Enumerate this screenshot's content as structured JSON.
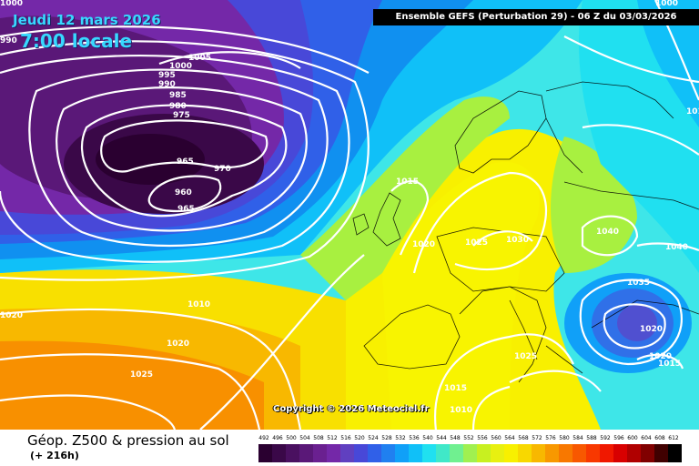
{
  "header": {
    "date_line": "Jeudi 12 mars 2026",
    "time_line": "7:00 locale",
    "model_banner": "Ensemble GEFS  (Perturbation 29)  -  06 Z du 03/03/2026"
  },
  "map": {
    "copyright": "Copyright © 2026 Meteociel.fr",
    "isobar_labels": {
      "l1": "990",
      "l2": "1005",
      "l3": "1000",
      "l4": "995",
      "l5": "990",
      "l6": "985",
      "l7": "980",
      "l8": "975",
      "l9": "965",
      "l10": "970",
      "l11": "960",
      "l12": "965",
      "l13": "1015",
      "l14": "1020",
      "l15": "1025",
      "l16": "1030",
      "l17": "1040",
      "l18": "1040",
      "l19": "1010",
      "l20": "1020",
      "l21": "1020",
      "l22": "1025",
      "l23": "1035",
      "l24": "1020",
      "l25": "1020",
      "l26": "1015",
      "l27": "1025",
      "l28": "1015",
      "l29": "1010",
      "l30": "1000",
      "l31": "1000",
      "l32": "101"
    }
  },
  "footer": {
    "title": "Géop. Z500 & pression au sol",
    "step": "(+ 216h)",
    "scale_labels": [
      "492",
      "496",
      "500",
      "504",
      "508",
      "512",
      "516",
      "520",
      "524",
      "528",
      "532",
      "536",
      "540",
      "544",
      "548",
      "552",
      "556",
      "560",
      "564",
      "568",
      "572",
      "576",
      "580",
      "584",
      "588",
      "592",
      "596",
      "600",
      "604",
      "608",
      "612"
    ],
    "scale_colors": [
      "#2a0030",
      "#3a0848",
      "#4a1060",
      "#5a1878",
      "#6a2090",
      "#7428a8",
      "#6040c0",
      "#4848d8",
      "#3060e8",
      "#2080f0",
      "#10a0f8",
      "#10c0f8",
      "#20e0f0",
      "#40e8c8",
      "#70f090",
      "#a0f050",
      "#c8f020",
      "#e8f010",
      "#f8f000",
      "#f8d800",
      "#f8b800",
      "#f89800",
      "#f87800",
      "#f85800",
      "#f83800",
      "#f01800",
      "#d80000",
      "#b00000",
      "#800000",
      "#400000",
      "#000000"
    ]
  }
}
